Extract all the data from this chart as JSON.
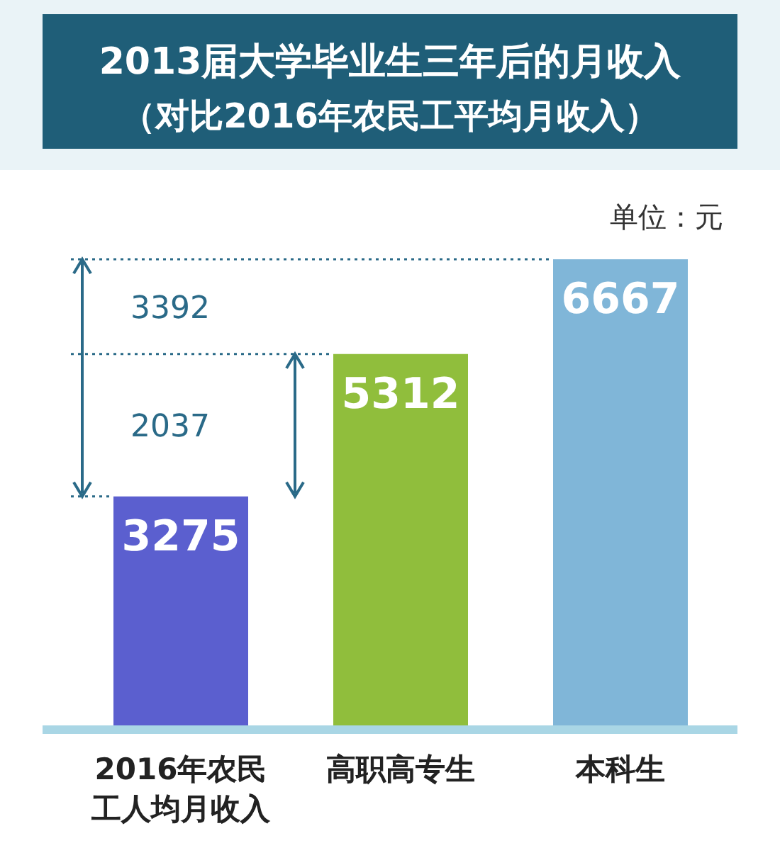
{
  "chart_data": {
    "type": "bar",
    "title": "2013届大学毕业生三年后的月收入",
    "subtitle": "（对比2016年农民工平均月收入）",
    "categories": [
      "2016年农民工人均月收入",
      "高职高专生",
      "本科生"
    ],
    "values": [
      3275,
      5312,
      6667
    ],
    "colors": [
      "#5b5fcf",
      "#90be3c",
      "#80b6d8"
    ],
    "data_labels": true,
    "ref_lines": [
      {
        "axis": "y",
        "value": 5312
      },
      {
        "axis": "y",
        "value": 6667
      }
    ],
    "annotations": [
      "单位：元",
      "3392",
      "2037"
    ]
  }
}
